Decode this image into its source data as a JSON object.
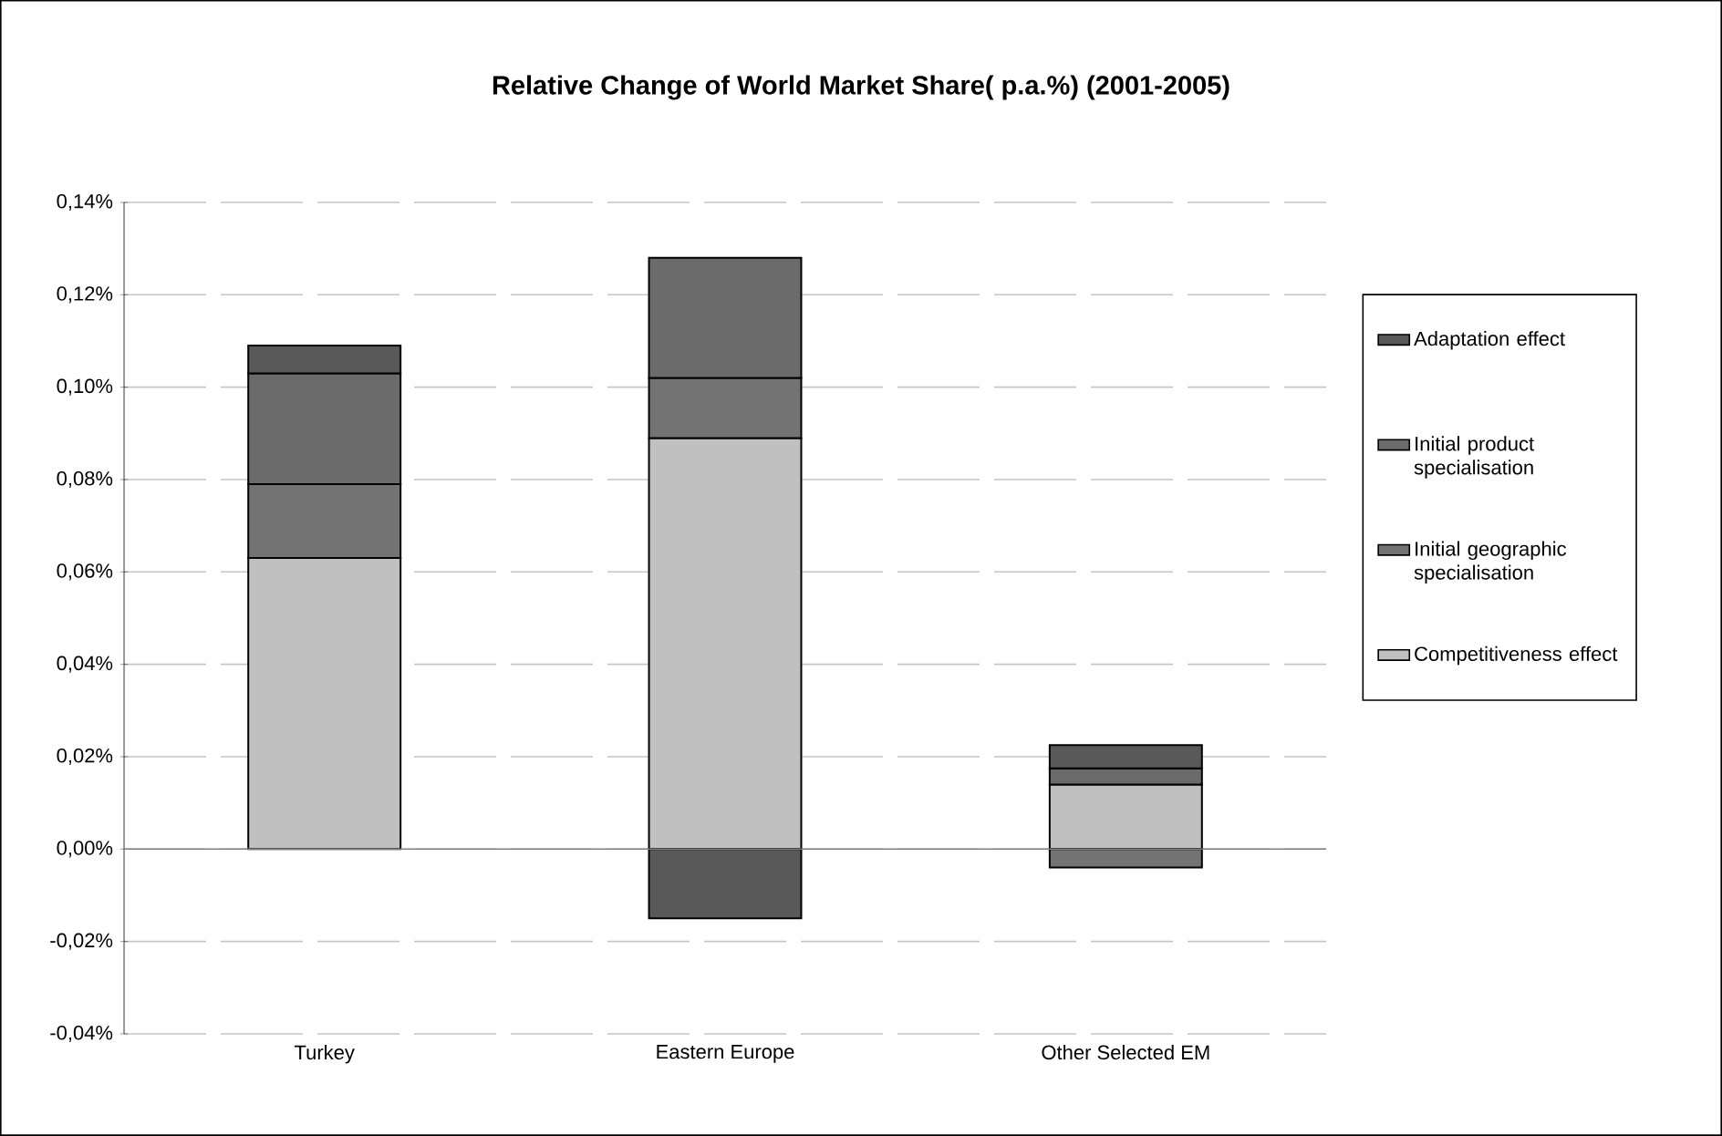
{
  "chart_data": {
    "type": "bar",
    "stacked": true,
    "title": "Relative Change of World Market Share( p.a.%) (2001-2005)",
    "categories": [
      "Turkey",
      "Eastern Europe",
      "Other Selected EM"
    ],
    "series": [
      {
        "name": "Competitiveness effect",
        "color": "#c0c0c0",
        "values": [
          0.063,
          0.089,
          0.014
        ]
      },
      {
        "name": "Initial geographic specialisation",
        "color": "#737373",
        "values": [
          0.016,
          0.013,
          -0.004
        ]
      },
      {
        "name": "Initial product specialisation",
        "color": "#6b6b6b",
        "values": [
          0.024,
          0.026,
          0.0035
        ]
      },
      {
        "name": "Adaptation effect",
        "color": "#595959",
        "values": [
          0.006,
          -0.015,
          0.005
        ]
      }
    ],
    "ylim": [
      -0.04,
      0.14
    ],
    "yticks": [
      {
        "value": -0.04,
        "label": "-0,04%"
      },
      {
        "value": -0.02,
        "label": "-0,02%"
      },
      {
        "value": 0,
        "label": "0,00%"
      },
      {
        "value": 0.02,
        "label": "0,02%"
      },
      {
        "value": 0.04,
        "label": "0,04%"
      },
      {
        "value": 0.06,
        "label": "0,06%"
      },
      {
        "value": 0.08,
        "label": "0,08%"
      },
      {
        "value": 0.1,
        "label": "0,10%"
      },
      {
        "value": 0.12,
        "label": "0,12%"
      },
      {
        "value": 0.14,
        "label": "0,14%"
      }
    ],
    "grid": "y",
    "legend": "right"
  }
}
